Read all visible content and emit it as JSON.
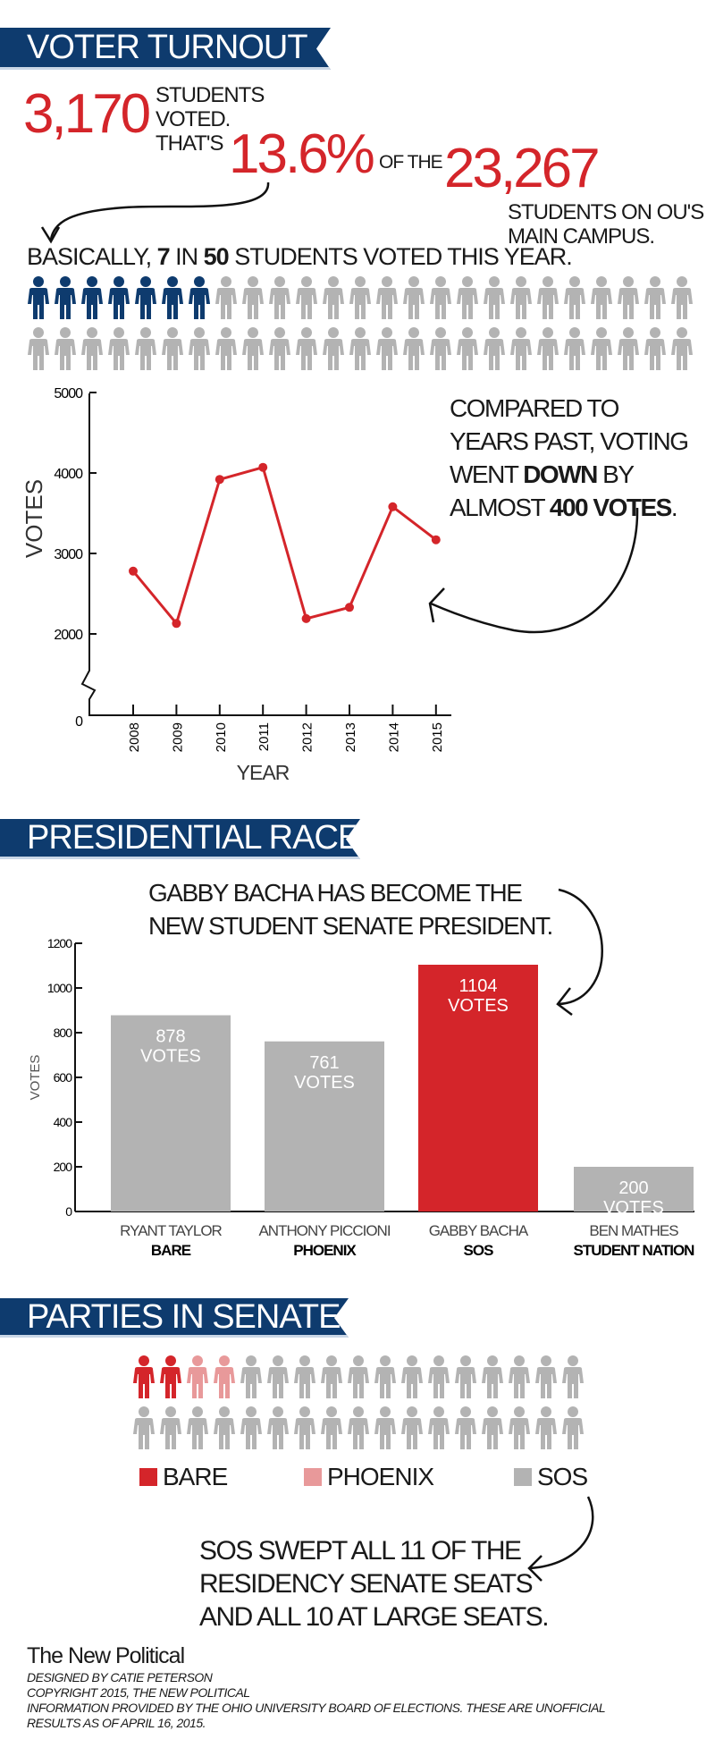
{
  "colors": {
    "navy": "#0e3b6e",
    "red": "#d4252a",
    "pink": "#e8999a",
    "grey": "#b3b3b3"
  },
  "turnout": {
    "banner": "VOTER TURNOUT",
    "voted_count": "3,170",
    "voted_text_1": "STUDENTS",
    "voted_text_2": "VOTED.",
    "thats": "THAT'S",
    "percent": "13.6%",
    "of_the": "OF THE",
    "total": "23,267",
    "campus_1": "STUDENTS ON OU'S",
    "campus_2": "MAIN CAMPUS.",
    "basically_pre": "BASICALLY, ",
    "basically_num1": "7",
    "basically_in": " IN ",
    "basically_num2": "50",
    "basically_post": " STUDENTS VOTED THIS YEAR.",
    "students_voted": 7,
    "students_total": 50,
    "compared_1": "COMPARED TO",
    "compared_2": "YEARS PAST, VOTING",
    "compared_3a": "WENT ",
    "compared_3b": "DOWN",
    "compared_3c": " BY",
    "compared_4a": "ALMOST ",
    "compared_4b": "400 VOTES",
    "compared_4c": "."
  },
  "presidential": {
    "banner": "PRESIDENTIAL RACE",
    "note_1": "GABBY BACHA HAS BECOME THE",
    "note_2": "NEW STUDENT SENATE PRESIDENT."
  },
  "senate": {
    "banner": "PARTIES IN SENATE",
    "seats": [
      {
        "party": "BARE",
        "count": 2
      },
      {
        "party": "PHOENIX",
        "count": 2
      },
      {
        "party": "SOS",
        "count": 30
      }
    ],
    "legend": [
      {
        "label": "BARE",
        "color": "#d4252a"
      },
      {
        "label": "PHOENIX",
        "color": "#e8999a"
      },
      {
        "label": "SOS",
        "color": "#b3b3b3"
      }
    ],
    "note_1": "SOS SWEPT ALL 11 OF THE",
    "note_2": "RESIDENCY SENATE SEATS",
    "note_3": "AND ALL 10 AT LARGE SEATS."
  },
  "footer": {
    "logo": "The New Political",
    "line1": "DESIGNED BY CATIE PETERSON",
    "line2": "COPYRIGHT 2015, THE NEW POLITICAL",
    "line3": "INFORMATION PROVIDED BY THE OHIO UNIVERSITY BOARD OF ELECTIONS. THESE ARE UNOFFICIAL",
    "line4": "RESULTS AS OF APRIL 16, 2015."
  },
  "chart_data": [
    {
      "type": "line",
      "x": [
        "2008",
        "2009",
        "2010",
        "2011",
        "2012",
        "2013",
        "2014",
        "2015"
      ],
      "values": [
        2780,
        2130,
        3920,
        4070,
        2190,
        2330,
        3580,
        3170
      ],
      "xlabel": "YEAR",
      "ylabel": "VOTES",
      "yticks": [
        "0",
        "2000",
        "3000",
        "4000",
        "5000"
      ],
      "ylim": [
        0,
        5000
      ],
      "axis_break": true,
      "grid": false,
      "color": "#d4252a"
    },
    {
      "type": "bar",
      "categories": [
        {
          "name": "RYANT TAYLOR",
          "party": "BARE"
        },
        {
          "name": "ANTHONY PICCIONI",
          "party": "PHOENIX"
        },
        {
          "name": "GABBY BACHA",
          "party": "SOS"
        },
        {
          "name": "BEN MATHES",
          "party": "STUDENT NATION"
        }
      ],
      "values": [
        878,
        761,
        1104,
        200
      ],
      "data_labels": [
        [
          "878",
          "VOTES"
        ],
        [
          "761",
          "VOTES"
        ],
        [
          "1104",
          "VOTES"
        ],
        [
          "200",
          "VOTES"
        ]
      ],
      "bar_colors": [
        "#b3b3b3",
        "#b3b3b3",
        "#d4252a",
        "#b3b3b3"
      ],
      "ylabel": "VOTES",
      "yticks": [
        "0",
        "200",
        "400",
        "600",
        "800",
        "1000",
        "1200"
      ],
      "ylim": [
        0,
        1200
      ],
      "grid": false
    }
  ]
}
